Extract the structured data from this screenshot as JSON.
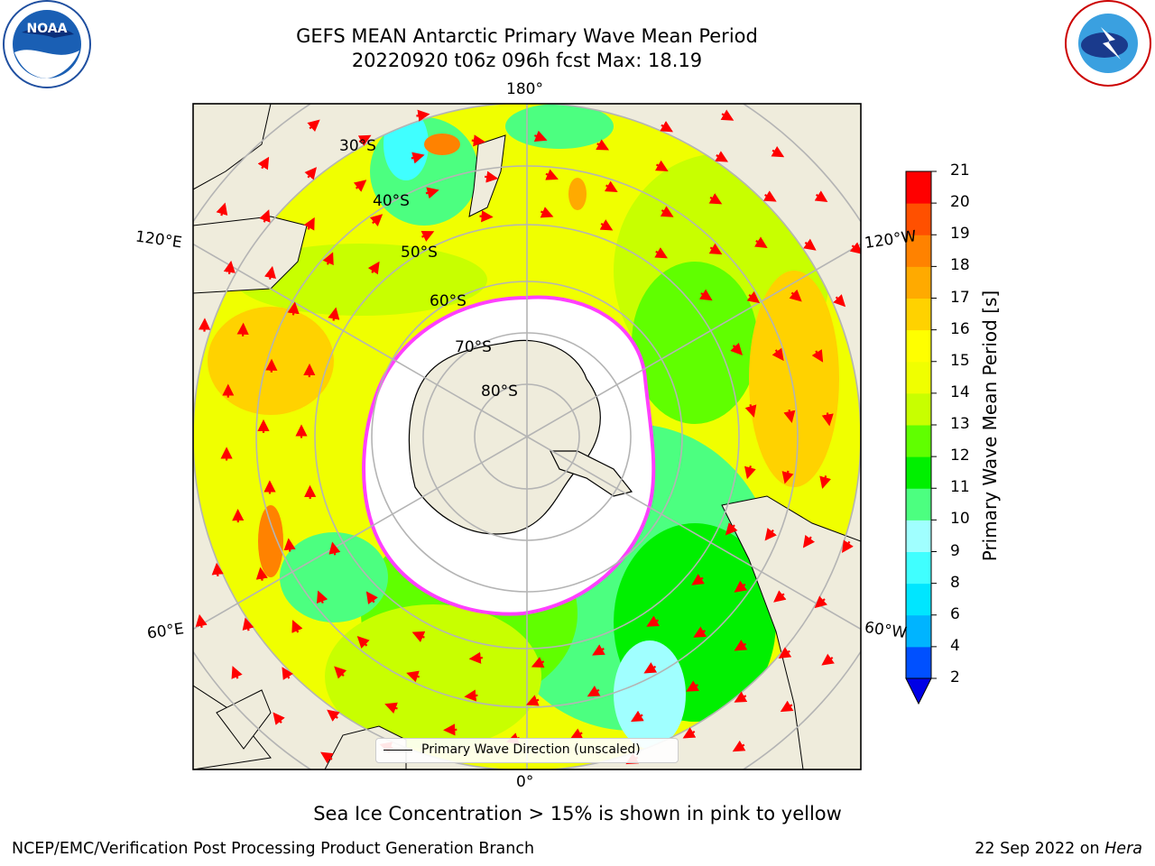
{
  "title_line1": "GEFS MEAN Antarctic Primary Wave Mean Period",
  "title_line2": "20220920 t06z 096h fcst   Max: 18.19",
  "subcaption": "Sea Ice Concentration > 15% is shown in pink to yellow",
  "footer_left": "NCEP/EMC/Verification Post Processing Product Generation Branch",
  "footer_right_date": "22 Sep 2022 on ",
  "footer_right_host": "Hera",
  "legend_label": "Primary Wave Direction (unscaled)",
  "lon_labels": {
    "top": "180°",
    "bottom": "0°",
    "left_upper": "120°E",
    "right_upper": "120°W",
    "left_lower": "60°E",
    "right_lower": "60°W"
  },
  "lat_labels": [
    "30°S",
    "40°S",
    "50°S",
    "60°S",
    "70°S",
    "80°S"
  ],
  "colorbar": {
    "label": "Primary Wave Mean Period [s]",
    "ticks": [
      "2",
      "4",
      "6",
      "8",
      "9",
      "10",
      "11",
      "12",
      "13",
      "14",
      "15",
      "16",
      "17",
      "18",
      "19",
      "20",
      "21"
    ],
    "colors": [
      "#0050ff",
      "#00b4ff",
      "#00e6ff",
      "#40ffff",
      "#a0ffff",
      "#4cff80",
      "#00f000",
      "#60ff00",
      "#c8ff00",
      "#f0ff00",
      "#ffff00",
      "#ffd200",
      "#ffaa00",
      "#ff8200",
      "#ff5000",
      "#ff0000"
    ],
    "extend_color": "#0000e6"
  },
  "colors": {
    "land": "#efecdc",
    "ice": "#ffffff",
    "ice_edge": "#ff40ff",
    "arrow": "#ff0000",
    "grid": "#b4b4b4"
  },
  "logos": {
    "noaa_text": "NOAA",
    "nws_text": "NATIONAL WEATHER SERVICE"
  }
}
